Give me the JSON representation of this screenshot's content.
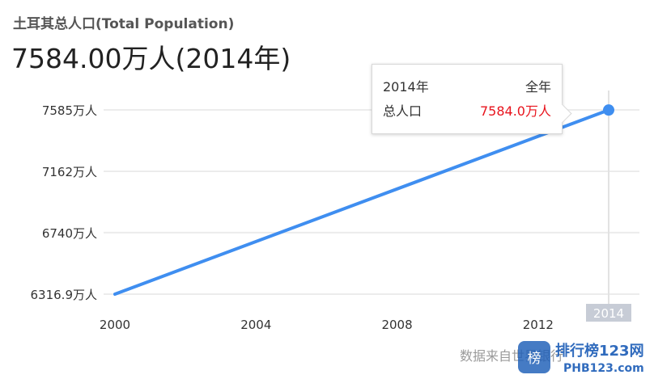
{
  "header": {
    "subtitle": "土耳其总人口(Total Population)",
    "headline": "7584.00万人(2014年)"
  },
  "tooltip": {
    "year": "2014年",
    "period": "全年",
    "metric": "总人口",
    "value": "7584.0万人"
  },
  "footer": {
    "source_text": "数据来自世界银行"
  },
  "watermark": {
    "text": "排行榜123网",
    "subtext": "PHB123.com"
  },
  "colors": {
    "line": "#3f8ef0",
    "tooltip_value": "#e8131c",
    "grid": "#ececec",
    "highlight_label_bg": "#c7ccd6"
  },
  "chart_data": {
    "type": "line",
    "title": "土耳其总人口(Total Population)",
    "x": [
      2000,
      2014
    ],
    "series": [
      {
        "values": [
          6316.9,
          7584.0
        ]
      }
    ],
    "xlim": [
      2000,
      2014
    ],
    "ylim": [
      6316.9,
      7585
    ],
    "x_ticks": [
      2000,
      2004,
      2008,
      2012,
      2014
    ],
    "x_tick_labels": [
      "2000",
      "2004",
      "2008",
      "2012",
      "2014"
    ],
    "y_ticks": [
      6316.9,
      6740,
      7162,
      7585
    ],
    "y_tick_labels": [
      "6316.9万人",
      "6740万人",
      "7162万人",
      "7585万人"
    ],
    "highlight": {
      "x": 2014,
      "label": "2014"
    },
    "grid": true,
    "legend": "none"
  }
}
